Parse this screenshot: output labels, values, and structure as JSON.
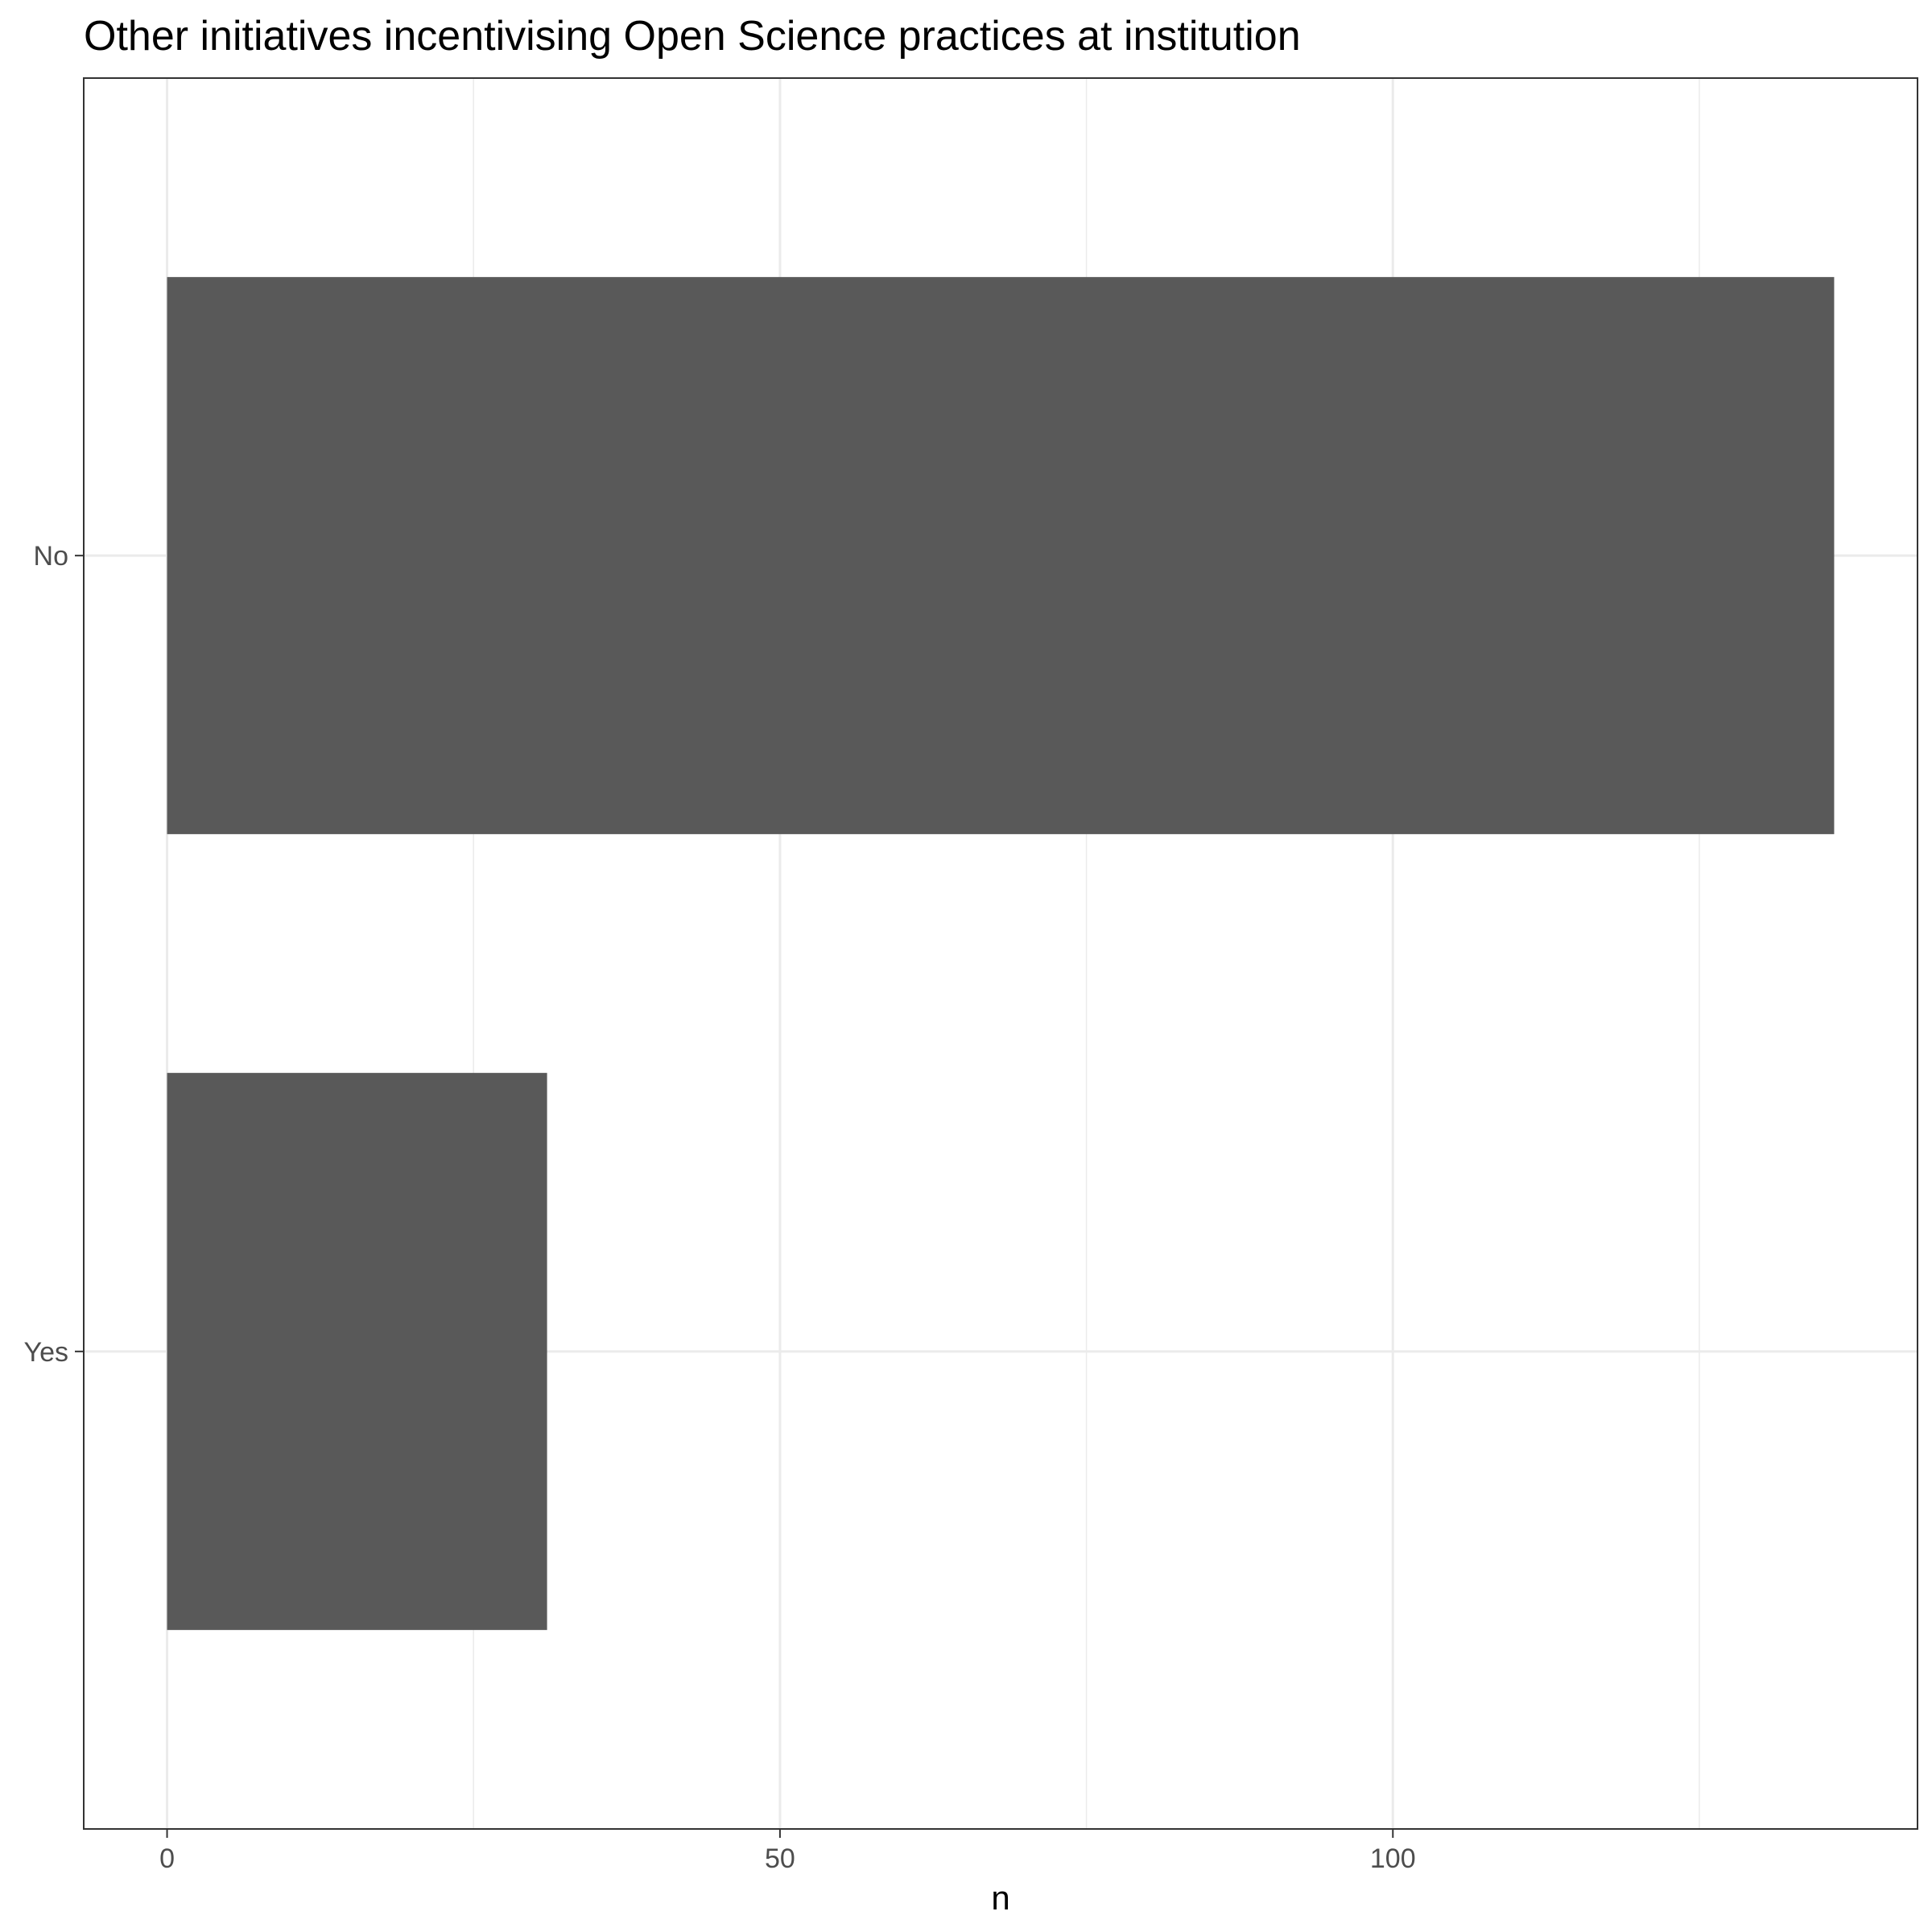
{
  "chart_data": {
    "type": "bar",
    "orientation": "horizontal",
    "title": "Other initiatives incentivising Open Science practices at institution",
    "xlabel": "n",
    "ylabel": "",
    "categories": [
      "No",
      "Yes"
    ],
    "values": [
      136,
      31
    ],
    "xlim": [
      -6.8,
      142.8
    ],
    "xticks": [
      0,
      50,
      100
    ],
    "grid": true,
    "legend": "none",
    "colors": {
      "bar": "#595959",
      "grid": "#ebebeb",
      "panel_border": "#333333",
      "tick_label": "#4d4d4d",
      "tick_mark": "#333333"
    }
  }
}
